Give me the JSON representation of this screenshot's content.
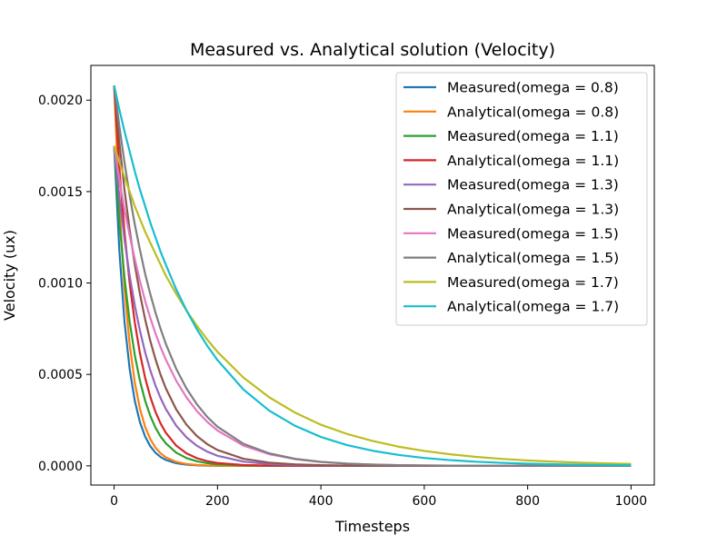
{
  "chart_data": {
    "type": "line",
    "title": "Measured vs. Analytical solution (Velocity)",
    "xlabel": "Timesteps",
    "ylabel": "Velocity (ux)",
    "xlim": [
      -45,
      1045
    ],
    "ylim": [
      -0.000105,
      0.00219
    ],
    "xticks": [
      0,
      200,
      400,
      600,
      800,
      1000
    ],
    "xtick_labels": [
      "0",
      "200",
      "400",
      "600",
      "800",
      "1000"
    ],
    "yticks": [
      0.0,
      0.0005,
      0.001,
      0.0015,
      0.002
    ],
    "ytick_labels": [
      "0.0000",
      "0.0005",
      "0.0010",
      "0.0015",
      "0.0020"
    ],
    "grid": false,
    "legend_position": "top-right",
    "x": [
      0,
      10,
      20,
      30,
      40,
      50,
      60,
      70,
      80,
      90,
      100,
      120,
      140,
      160,
      180,
      200,
      250,
      300,
      350,
      400,
      450,
      500,
      550,
      600,
      650,
      700,
      750,
      800,
      850,
      900,
      950,
      1000
    ],
    "series": [
      {
        "name": "Measured(omega = 0.8)",
        "color": "#1f77b4",
        "values": [
          0.00175,
          0.00118,
          0.00079,
          0.00053,
          0.000355,
          0.000238,
          0.00016,
          0.000107,
          7.17e-05,
          4.8e-05,
          3.22e-05,
          1.45e-05,
          6.5e-06,
          2.9e-06,
          1.3e-06,
          6e-07,
          1e-07,
          0,
          0,
          0,
          0,
          0,
          0,
          0,
          0,
          0,
          0,
          0,
          0,
          0,
          0,
          0
        ]
      },
      {
        "name": "Analytical(omega = 0.8)",
        "color": "#ff7f0e",
        "values": [
          0.00208,
          0.00142,
          0.000972,
          0.000665,
          0.000455,
          0.000311,
          0.000213,
          0.000146,
          9.96e-05,
          6.81e-05,
          4.66e-05,
          2.18e-05,
          1.02e-05,
          4.8e-06,
          2.2e-06,
          1e-06,
          2e-07,
          0,
          0,
          0,
          0,
          0,
          0,
          0,
          0,
          0,
          0,
          0,
          0,
          0,
          0,
          0
        ]
      },
      {
        "name": "Measured(omega = 1.1)",
        "color": "#2ca02c",
        "values": [
          0.00175,
          0.00134,
          0.00103,
          0.000789,
          0.000605,
          0.000464,
          0.000356,
          0.000273,
          0.000209,
          0.00016,
          0.000123,
          7.23e-05,
          4.25e-05,
          2.5e-05,
          1.47e-05,
          8.6e-06,
          2.3e-06,
          6e-07,
          2e-07,
          0,
          0,
          0,
          0,
          0,
          0,
          0,
          0,
          0,
          0,
          0,
          0,
          0
        ]
      },
      {
        "name": "Analytical(omega = 1.1)",
        "color": "#d62728",
        "values": [
          0.00208,
          0.00163,
          0.00128,
          0.001,
          0.000784,
          0.000614,
          0.000481,
          0.000377,
          0.000295,
          0.000231,
          0.000181,
          0.000111,
          6.83e-05,
          4.19e-05,
          2.57e-05,
          1.58e-05,
          4.6e-06,
          1.3e-06,
          4e-07,
          1e-07,
          0,
          0,
          0,
          0,
          0,
          0,
          0,
          0,
          0,
          0,
          0,
          0
        ]
      },
      {
        "name": "Measured(omega = 1.3)",
        "color": "#9467bd",
        "values": [
          0.00175,
          0.00147,
          0.00124,
          0.00104,
          0.000877,
          0.000738,
          0.000621,
          0.000522,
          0.000439,
          0.00037,
          0.000311,
          0.00022,
          0.000156,
          0.00011,
          7.79e-05,
          5.51e-05,
          2.32e-05,
          9.8e-06,
          4.1e-06,
          1.7e-06,
          7e-07,
          3e-07,
          1e-07,
          0,
          0,
          0,
          0,
          0,
          0,
          0,
          0,
          0
        ]
      },
      {
        "name": "Analytical(omega = 1.3)",
        "color": "#8c564b",
        "values": [
          0.00208,
          0.00177,
          0.00151,
          0.00129,
          0.0011,
          0.000939,
          0.000801,
          0.000683,
          0.000583,
          0.000497,
          0.000424,
          0.000309,
          0.000225,
          0.000163,
          0.000119,
          8.66e-05,
          3.89e-05,
          1.75e-05,
          7.9e-06,
          3.5e-06,
          1.6e-06,
          7e-07,
          3e-07,
          1e-07,
          0,
          0,
          0,
          0,
          0,
          0,
          0,
          0
        ]
      },
      {
        "name": "Measured(omega = 1.5)",
        "color": "#e377c2",
        "values": [
          0.00175,
          0.00157,
          0.0014,
          0.00126,
          0.00113,
          0.00101,
          0.000902,
          0.000808,
          0.000724,
          0.000648,
          0.000581,
          0.000466,
          0.000374,
          0.0003,
          0.000241,
          0.000193,
          0.000111,
          6.39e-05,
          3.67e-05,
          2.11e-05,
          1.21e-05,
          7e-06,
          4e-06,
          2.3e-06,
          1.3e-06,
          8e-07,
          4e-07,
          3e-07,
          1e-07,
          0,
          0,
          0
        ]
      },
      {
        "name": "Analytical(omega = 1.5)",
        "color": "#7f7f7f",
        "values": [
          0.00208,
          0.00186,
          0.00166,
          0.00148,
          0.00132,
          0.00118,
          0.00105,
          0.000939,
          0.000838,
          0.000748,
          0.000667,
          0.000531,
          0.000423,
          0.000337,
          0.000268,
          0.000214,
          0.000121,
          6.83e-05,
          3.87e-05,
          2.19e-05,
          1.24e-05,
          7e-06,
          4e-06,
          2.2e-06,
          1.3e-06,
          7e-07,
          4e-07,
          2e-07,
          1e-07,
          0,
          0,
          0
        ]
      },
      {
        "name": "Measured(omega = 1.7)",
        "color": "#bcbd22",
        "values": [
          0.00175,
          0.00166,
          0.00158,
          0.0015,
          0.00142,
          0.00135,
          0.00128,
          0.00122,
          0.00116,
          0.0011,
          0.00104,
          0.000941,
          0.000849,
          0.000766,
          0.000691,
          0.000623,
          0.000483,
          0.000375,
          0.000291,
          0.000225,
          0.000175,
          0.000136,
          0.000105,
          8.15e-05,
          6.32e-05,
          4.9e-05,
          3.8e-05,
          2.95e-05,
          2.29e-05,
          1.77e-05,
          1.38e-05,
          1.07e-05
        ]
      },
      {
        "name": "Analytical(omega = 1.7)",
        "color": "#17becf",
        "values": [
          0.00208,
          0.00195,
          0.00183,
          0.00172,
          0.00161,
          0.00151,
          0.00142,
          0.00133,
          0.00125,
          0.00117,
          0.0011,
          0.000966,
          0.00085,
          0.000747,
          0.000657,
          0.000578,
          0.000418,
          0.000302,
          0.000219,
          0.000158,
          0.000114,
          8.26e-05,
          5.97e-05,
          4.32e-05,
          3.12e-05,
          2.26e-05,
          1.63e-05,
          1.18e-05,
          8.5e-06,
          6.2e-06,
          4.5e-06,
          3.2e-06
        ]
      }
    ]
  }
}
